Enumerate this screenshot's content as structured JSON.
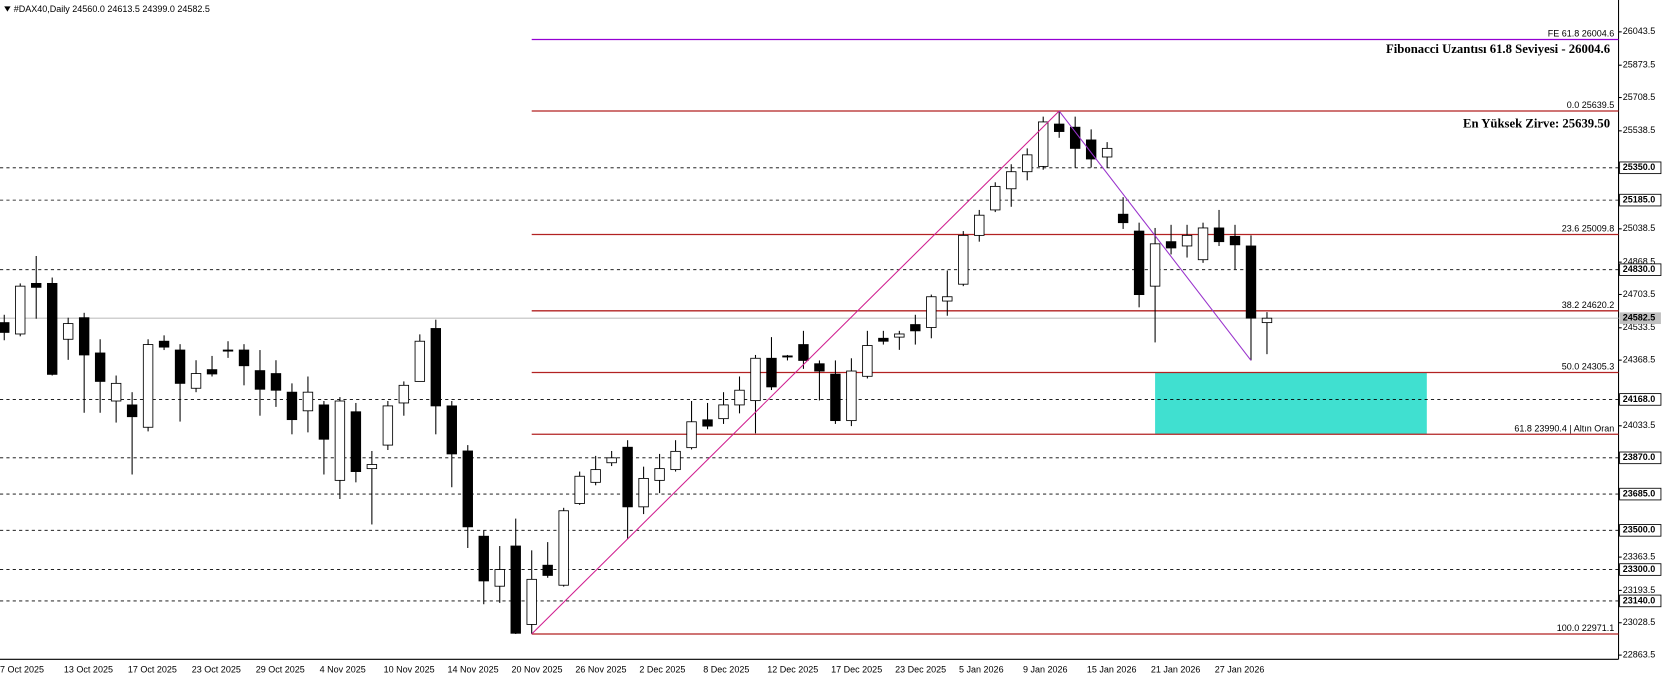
{
  "chart_data": {
    "type": "candlestick",
    "header": "#DAX40,Daily  24560.0 24613.5 24399.0 24582.5",
    "categories": [
      "7 Oct 2025",
      null,
      null,
      null,
      "13 Oct 2025",
      null,
      null,
      null,
      "17 Oct 2025",
      null,
      null,
      null,
      "23 Oct 2025",
      null,
      null,
      null,
      "29 Oct 2025",
      null,
      null,
      null,
      "4 Nov 2025",
      null,
      null,
      null,
      "10 Nov 2025",
      null,
      null,
      null,
      "14 Nov 2025",
      null,
      null,
      null,
      "20 Nov 2025",
      null,
      null,
      null,
      "26 Nov 2025",
      null,
      null,
      null,
      "2 Dec 2025",
      null,
      null,
      null,
      "8 Dec 2025",
      null,
      null,
      null,
      "12 Dec 2025",
      null,
      null,
      null,
      "17 Dec 2025",
      null,
      null,
      null,
      "23 Dec 2025",
      null,
      null,
      null,
      "5 Jan 2026",
      null,
      null,
      null,
      "9 Jan 2026",
      null,
      null,
      null,
      "15 Jan 2026",
      null,
      null,
      null,
      "21 Jan 2026",
      null,
      null,
      null,
      "27 Jan 2026",
      null,
      null,
      null
    ],
    "open": [
      24560,
      24502,
      24760,
      24760,
      24475,
      24585,
      24405,
      24160,
      24140,
      24026,
      24465,
      24420,
      24225,
      24320,
      24420,
      24420,
      24315,
      24300,
      24205,
      24110,
      24140,
      23755,
      24105,
      23815,
      23935,
      24150,
      24260,
      24530,
      24135,
      23905,
      23470,
      23215,
      23420,
      23020,
      23322,
      23220,
      23637,
      23745,
      23845,
      23924,
      23620,
      23755,
      23810,
      23922,
      24064,
      24070,
      24140,
      24162,
      24378,
      24390,
      24448,
      24350,
      24297,
      24060,
      24286,
      24480,
      24486,
      24550,
      24535,
      24670,
      24756,
      25005,
      25135,
      25243,
      25330,
      25357,
      25573,
      25557,
      25492,
      25405,
      25113,
      25027,
      24746,
      24973,
      24951,
      24881,
      25043,
      25000,
      24951,
      24560
    ],
    "high": [
      24600,
      24760,
      24900,
      24790,
      24585,
      24610,
      24475,
      24290,
      24205,
      24475,
      24495,
      24450,
      24368,
      24390,
      24465,
      24450,
      24420,
      24368,
      24250,
      24285,
      24160,
      24180,
      24150,
      23905,
      24160,
      24260,
      24500,
      24575,
      24160,
      23935,
      23500,
      23420,
      23560,
      23398,
      23440,
      23615,
      23800,
      23880,
      23905,
      23960,
      23825,
      23890,
      23960,
      24160,
      24150,
      24205,
      24285,
      24395,
      24486,
      24395,
      24518,
      24367,
      24367,
      24378,
      24518,
      24518,
      24518,
      24600,
      24703,
      24826,
      25027,
      25135,
      25276,
      25368,
      25449,
      25611,
      25639.5,
      25611,
      25546,
      25481,
      25200,
      25070,
      25043,
      25059,
      25059,
      25070,
      25135,
      25059,
      25005,
      24613.5
    ],
    "low": [
      24470,
      24490,
      24580,
      24290,
      24370,
      24100,
      24100,
      24050,
      23785,
      24005,
      24420,
      24055,
      24205,
      24285,
      24380,
      24240,
      24085,
      24130,
      23990,
      24000,
      23785,
      23660,
      23745,
      23530,
      23910,
      24085,
      24260,
      23990,
      23720,
      23410,
      23123,
      23130,
      22971.1,
      22972,
      23258,
      23213,
      23630,
      23730,
      23828,
      23455,
      23583,
      23690,
      23800,
      23913,
      24016,
      24043,
      24097,
      23995,
      24216,
      24367,
      24324,
      24163,
      24043,
      24032,
      24275,
      24448,
      24421,
      24448,
      24480,
      24595,
      24746,
      24973,
      25124,
      25151,
      25286,
      25340,
      25503,
      25351,
      25351,
      25351,
      25038,
      24638,
      24459,
      24908,
      24892,
      24865,
      24951,
      24832,
      24367,
      24399
    ],
    "close": [
      24510,
      24746,
      24740,
      24296,
      24555,
      24395,
      24260,
      24250,
      24080,
      24448,
      24435,
      24250,
      24300,
      24298,
      24415,
      24340,
      24220,
      24215,
      24065,
      24205,
      23965,
      24160,
      23800,
      23836,
      24135,
      24240,
      24465,
      24135,
      23890,
      23518,
      23242,
      23300,
      22975,
      23250,
      23270,
      23600,
      23776,
      23810,
      23870,
      23620,
      23765,
      23815,
      23903,
      24054,
      24032,
      24140,
      24215,
      24378,
      24232,
      24388,
      24367,
      24313,
      24060,
      24313,
      24443,
      24465,
      24502,
      24518,
      24692,
      24692,
      25005,
      25108,
      25255,
      25330,
      25416,
      25584,
      25535,
      25449,
      25395,
      25449,
      25070,
      24703,
      24962,
      24941,
      25005,
      25043,
      24973,
      24957,
      24583,
      24582.5
    ],
    "ylim": [
      22842,
      26206
    ],
    "yticks": [
      {
        "value": 26043.5,
        "label": "26043.5"
      },
      {
        "value": 25873.5,
        "label": "25873.5"
      },
      {
        "value": 25708.5,
        "label": "25708.5"
      },
      {
        "value": 25538.5,
        "label": "25538.5"
      },
      {
        "value": 25038.5,
        "label": "25038.5"
      },
      {
        "value": 24868.5,
        "label": "24868.5"
      },
      {
        "value": 24703.5,
        "label": "24703.5"
      },
      {
        "value": 24533.5,
        "label": "24533.5"
      },
      {
        "value": 24368.5,
        "label": "24368.5"
      },
      {
        "value": 24033.5,
        "label": "24033.5"
      },
      {
        "value": 23363.5,
        "label": "23363.5"
      },
      {
        "value": 23193.5,
        "label": "23193.5"
      },
      {
        "value": 23028.5,
        "label": "23028.5"
      },
      {
        "value": 22863.5,
        "label": "22863.5"
      }
    ],
    "levels": [
      {
        "value": 25350,
        "label": "25350.0"
      },
      {
        "value": 25185,
        "label": "25185.0"
      },
      {
        "value": 24830,
        "label": "24830.0"
      },
      {
        "value": 24168,
        "label": "24168.0"
      },
      {
        "value": 23870,
        "label": "23870.0"
      },
      {
        "value": 23685,
        "label": "23685.0"
      },
      {
        "value": 23500,
        "label": "23500.0"
      },
      {
        "value": 23300,
        "label": "23300.0"
      },
      {
        "value": 23140,
        "label": "23140.0"
      }
    ],
    "last_price": 24582.5,
    "fibonacci": {
      "color": "#b22222",
      "levels": [
        {
          "value": 25639.5,
          "label": "0.0 25639.5"
        },
        {
          "value": 25009.8,
          "label": "23.6 25009.8"
        },
        {
          "value": 24620.2,
          "label": "38.2 24620.2"
        },
        {
          "value": 24305.3,
          "label": "50.0 24305.3"
        },
        {
          "value": 23990.4,
          "label": "61.8 23990.4 | Altın Oran"
        },
        {
          "value": 22971.1,
          "label": "100.0 22971.1"
        }
      ]
    },
    "extension": {
      "value": 26004.6,
      "label": "FE 61.8 26004.6",
      "color": "#9400d3"
    },
    "trendlines": [
      {
        "from": [
          33,
          22971.1
        ],
        "to": [
          66,
          25639.5
        ],
        "color": "#d02090"
      },
      {
        "from": [
          66,
          25639.5
        ],
        "to": [
          78,
          24367
        ],
        "color": "#9932cc"
      }
    ],
    "zone": {
      "x": [
        72,
        89
      ],
      "y": [
        23990.4,
        24305.3
      ],
      "color": "#40e0d0"
    },
    "annotations": [
      {
        "text": "Fibonacci Uzantısı 61.8 Seviyesi - 26004.6",
        "color": "#9932cc"
      },
      {
        "text": "En Yüksek Zirve: 25639.50",
        "color": "#0000cd"
      }
    ]
  }
}
